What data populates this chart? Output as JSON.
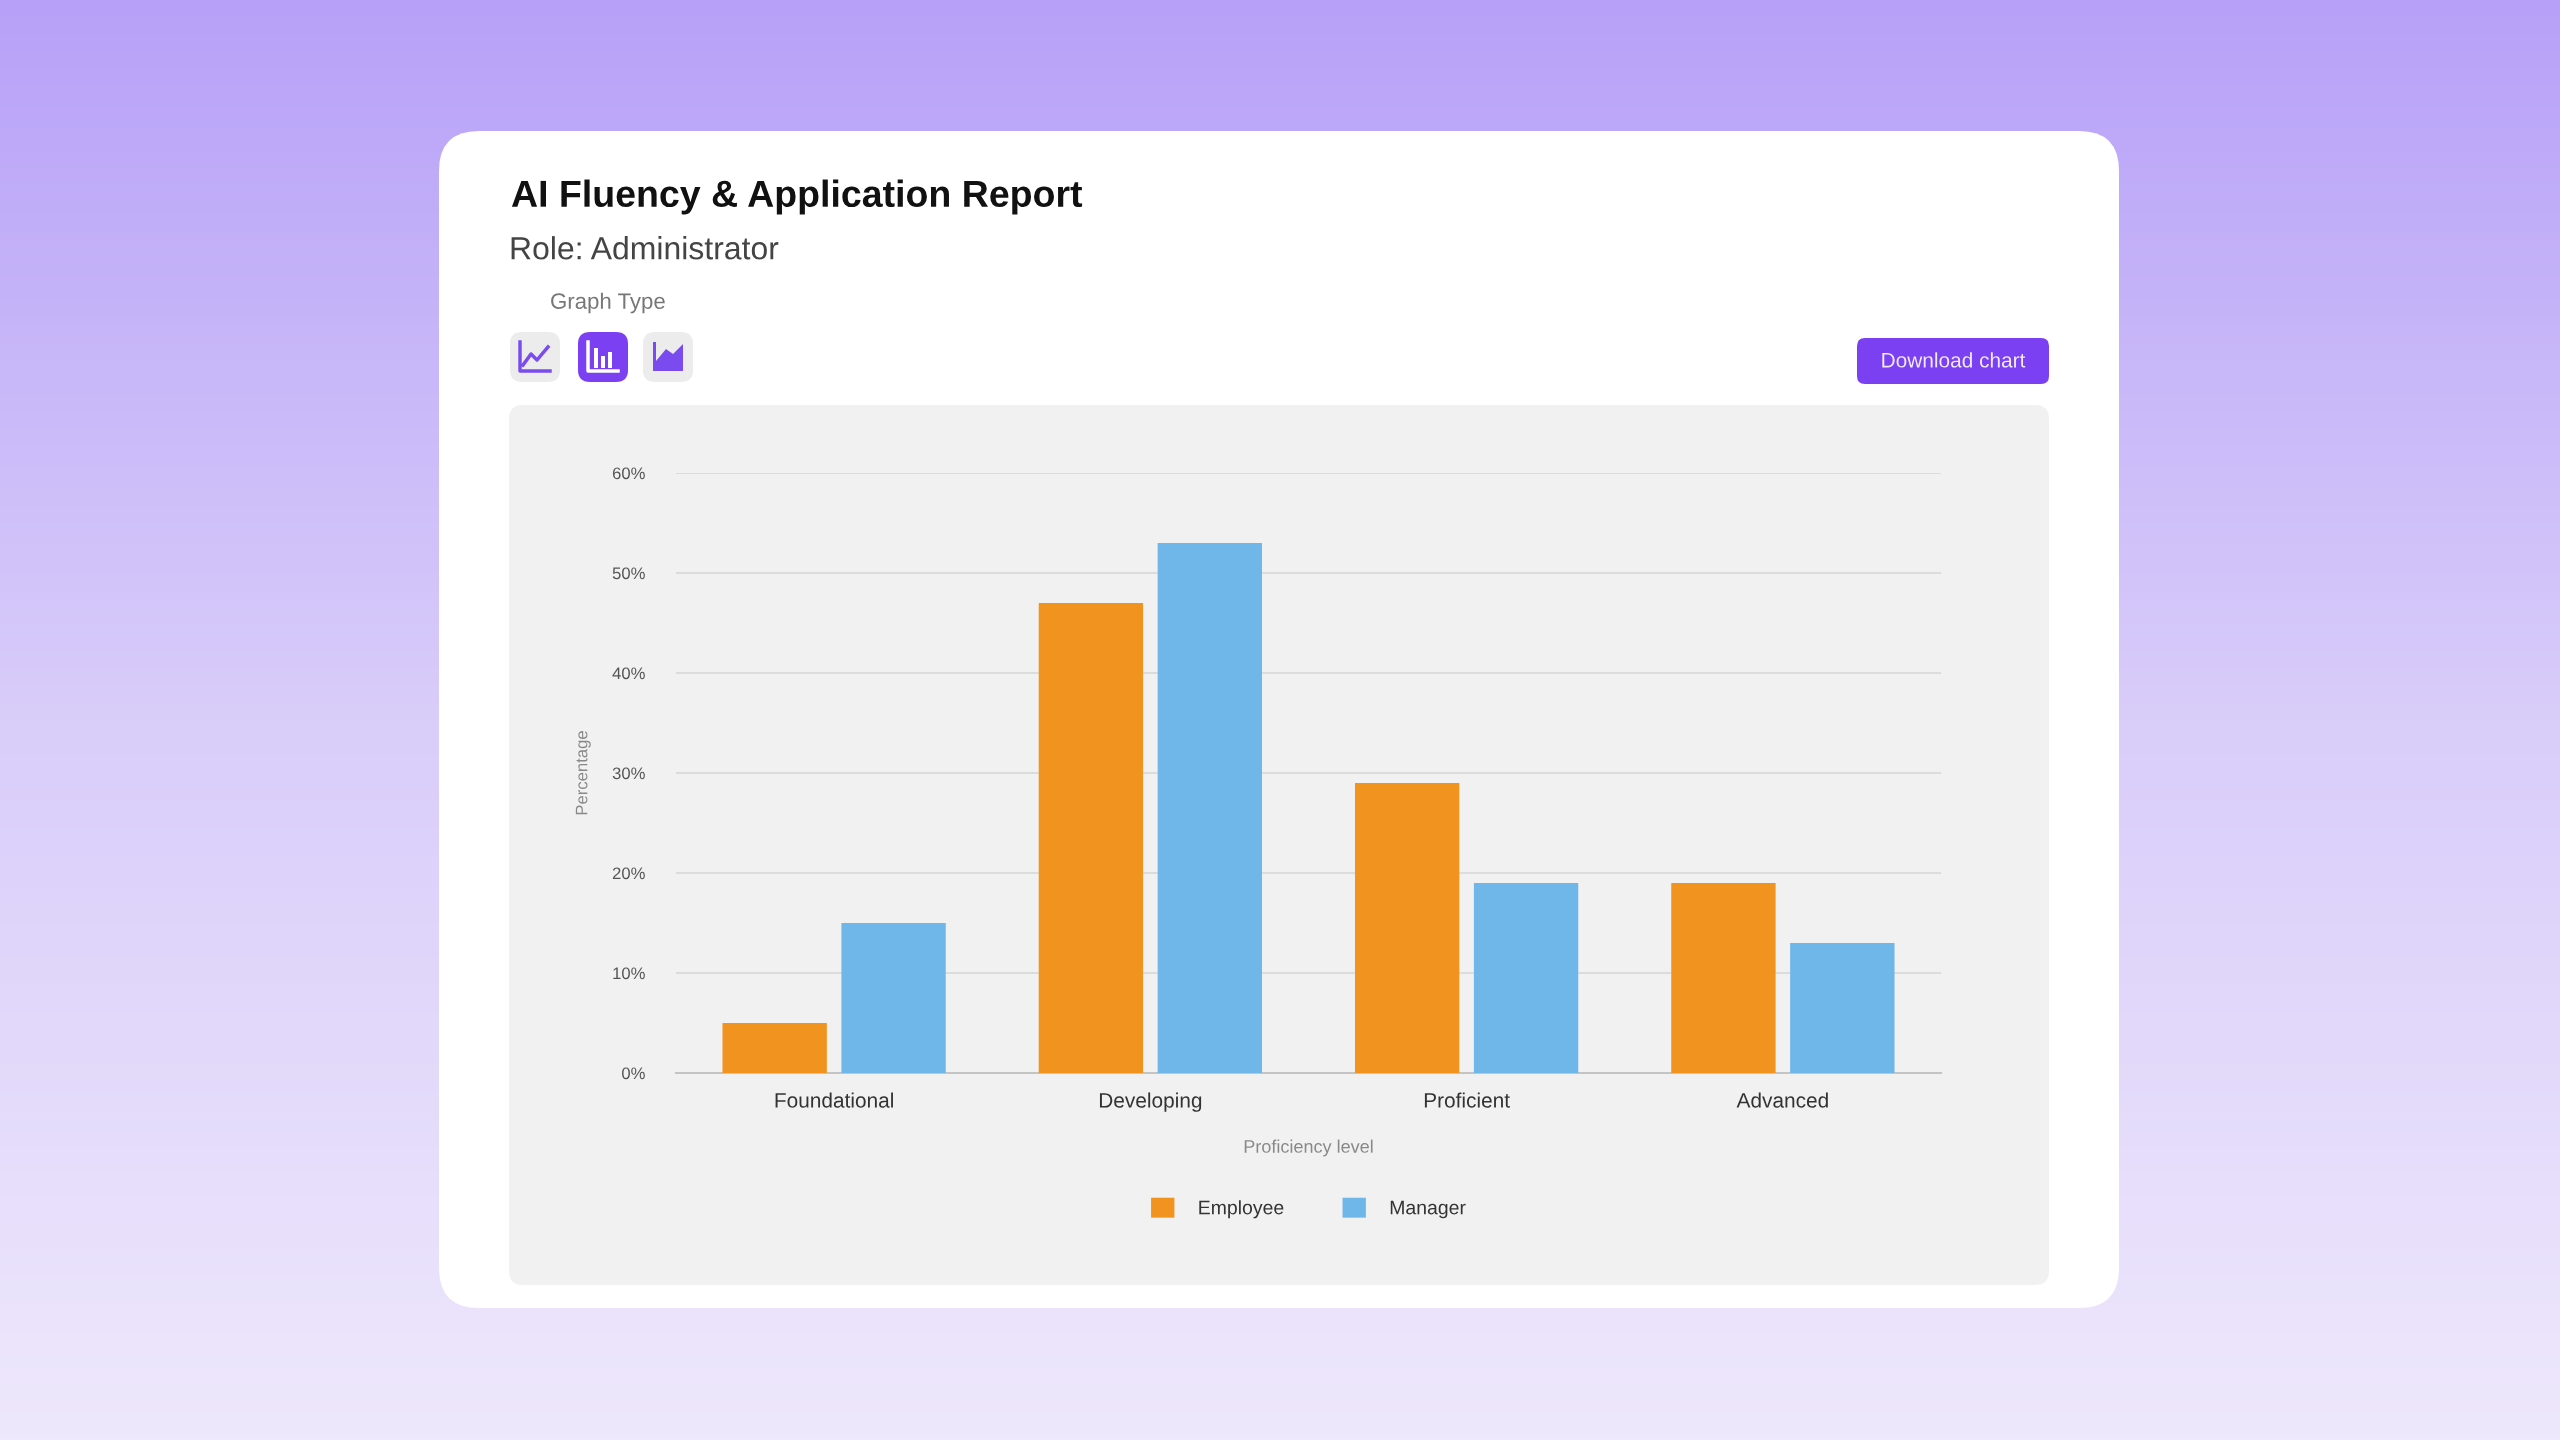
{
  "chart_data": {
    "type": "bar",
    "title": "AI Fluency & Application Report",
    "subtitle": "Role: Administrator",
    "xlabel": "Proficiency level",
    "ylabel": "Percentage",
    "categories": [
      "Foundational",
      "Developing",
      "Proficient",
      "Advanced"
    ],
    "series": [
      {
        "name": "Employee",
        "color": "#f0941f",
        "values": [
          5,
          47,
          29,
          19
        ]
      },
      {
        "name": "Manager",
        "color": "#6fb6e9",
        "values": [
          15,
          53,
          19,
          13
        ]
      }
    ],
    "ylim": [
      0,
      60
    ],
    "yticks": [
      {
        "value": 0,
        "label": "0%"
      },
      {
        "value": 10,
        "label": "10%"
      },
      {
        "value": 20,
        "label": "20%"
      },
      {
        "value": 30,
        "label": "30%"
      },
      {
        "value": 40,
        "label": "40%"
      },
      {
        "value": 50,
        "label": "50%"
      },
      {
        "value": 60,
        "label": "60%"
      }
    ],
    "grid": "y",
    "legend": "bottom",
    "annotations": [
      "Graph Type",
      "Download chart"
    ]
  }
}
